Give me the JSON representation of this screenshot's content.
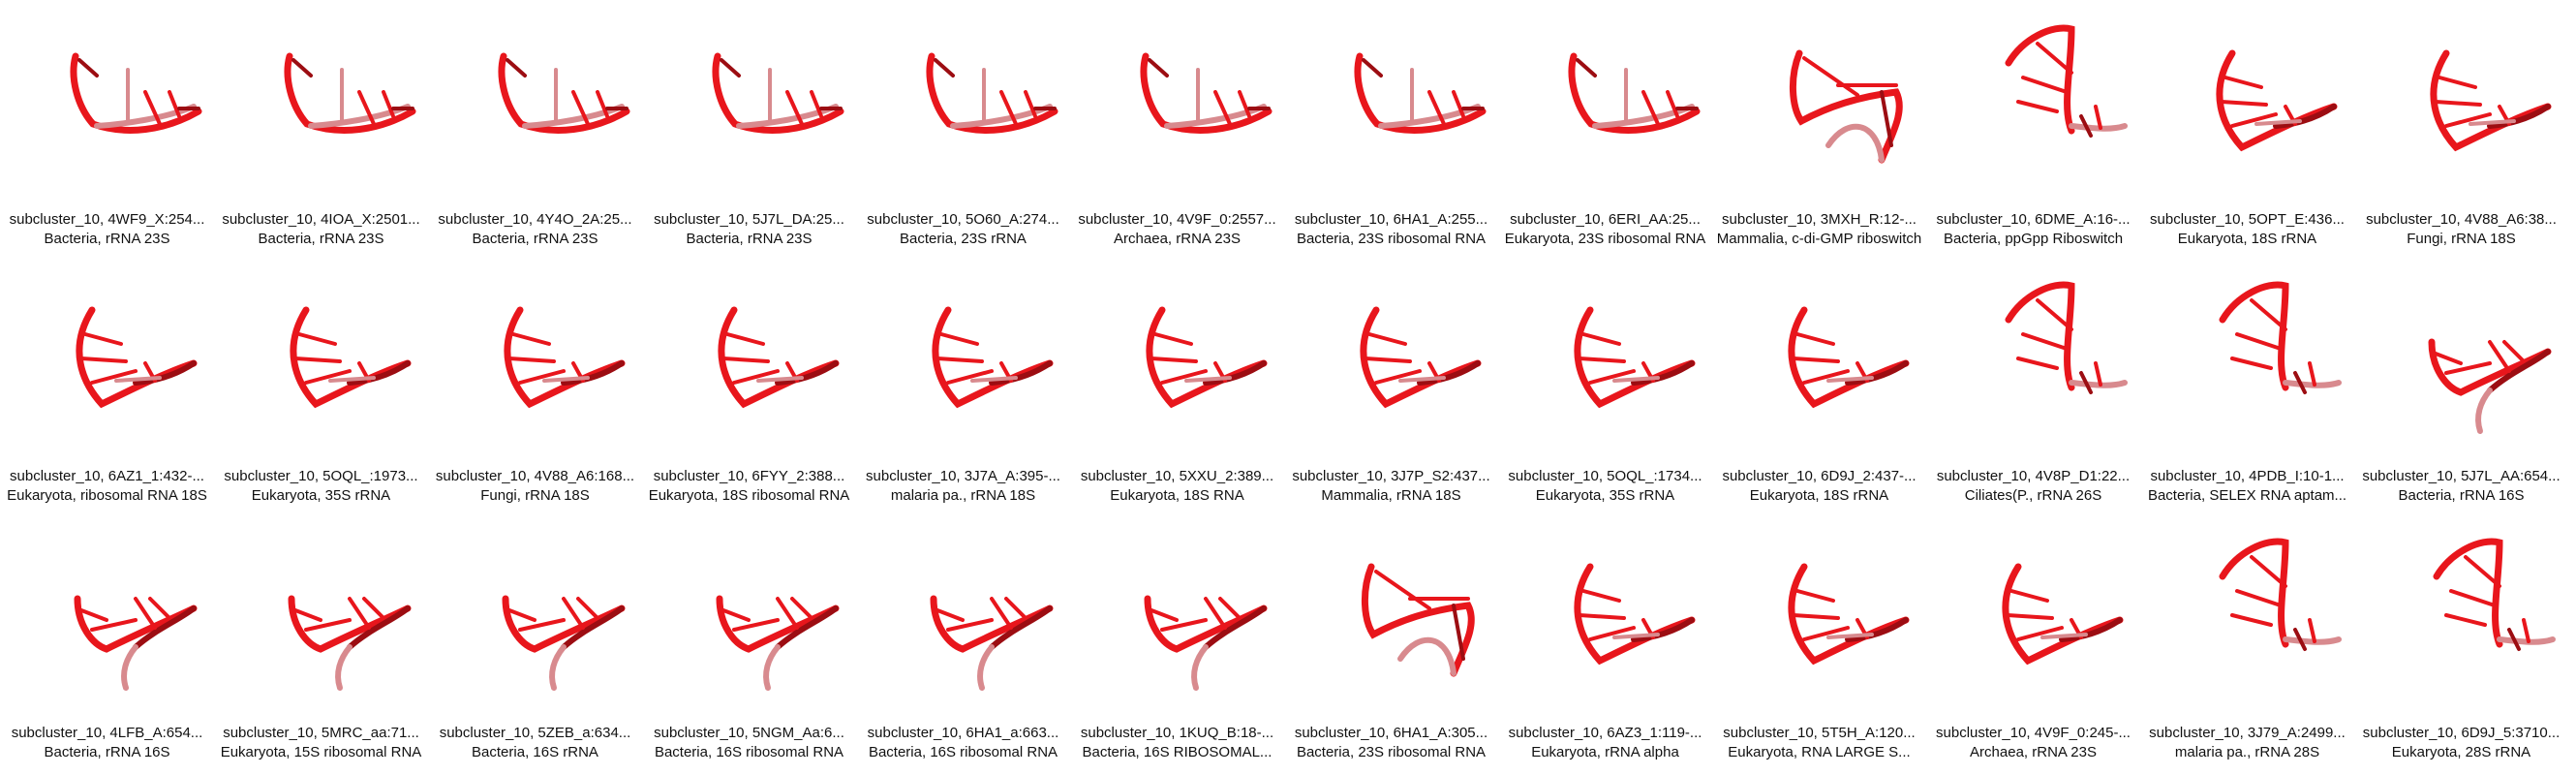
{
  "colors": {
    "strand": "#e8161c",
    "strand_dark": "#9c0d12",
    "strand_light": "#d88a8e"
  },
  "tiles": [
    {
      "label": "subcluster_10, 4WF9_X:254...",
      "desc": "Bacteria, rRNA 23S",
      "shape": "a"
    },
    {
      "label": "subcluster_10, 4IOA_X:2501...",
      "desc": "Bacteria, rRNA 23S",
      "shape": "a"
    },
    {
      "label": "subcluster_10, 4Y4O_2A:25...",
      "desc": "Bacteria, rRNA 23S",
      "shape": "a"
    },
    {
      "label": "subcluster_10, 5J7L_DA:25...",
      "desc": "Bacteria, rRNA 23S",
      "shape": "a"
    },
    {
      "label": "subcluster_10, 5O60_A:274...",
      "desc": "Bacteria, 23S rRNA",
      "shape": "a"
    },
    {
      "label": "subcluster_10, 4V9F_0:2557...",
      "desc": "Archaea, rRNA 23S",
      "shape": "a"
    },
    {
      "label": "subcluster_10, 6HA1_A:255...",
      "desc": "Bacteria, 23S ribosomal RNA",
      "shape": "a"
    },
    {
      "label": "subcluster_10, 6ERI_AA:25...",
      "desc": "Eukaryota, 23S ribosomal RNA",
      "shape": "a"
    },
    {
      "label": "subcluster_10, 3MXH_R:12-...",
      "desc": "Mammalia, c-di-GMP riboswitch",
      "shape": "c"
    },
    {
      "label": "subcluster_10, 6DME_A:16-...",
      "desc": "Bacteria, ppGpp Riboswitch",
      "shape": "d"
    },
    {
      "label": "subcluster_10, 5OPT_E:436...",
      "desc": "Eukaryota, 18S rRNA",
      "shape": "b"
    },
    {
      "label": "subcluster_10, 4V88_A6:38...",
      "desc": "Fungi, rRNA 18S",
      "shape": "b"
    },
    {
      "label": "subcluster_10, 6AZ1_1:432-...",
      "desc": "Eukaryota, ribosomal RNA 18S",
      "shape": "b"
    },
    {
      "label": "subcluster_10, 5OQL_:1973...",
      "desc": "Eukaryota, 35S rRNA",
      "shape": "b"
    },
    {
      "label": "subcluster_10, 4V88_A6:168...",
      "desc": "Fungi, rRNA 18S",
      "shape": "b"
    },
    {
      "label": "subcluster_10, 6FYY_2:388...",
      "desc": "Eukaryota, 18S ribosomal RNA",
      "shape": "b"
    },
    {
      "label": "subcluster_10, 3J7A_A:395-...",
      "desc": "malaria pa., rRNA 18S",
      "shape": "b"
    },
    {
      "label": "subcluster_10, 5XXU_2:389...",
      "desc": "Eukaryota, 18S RNA",
      "shape": "b"
    },
    {
      "label": "subcluster_10, 3J7P_S2:437...",
      "desc": "Mammalia, rRNA 18S",
      "shape": "b"
    },
    {
      "label": "subcluster_10, 5OQL_:1734...",
      "desc": "Eukaryota, 35S rRNA",
      "shape": "b"
    },
    {
      "label": "subcluster_10, 6D9J_2:437-...",
      "desc": "Eukaryota, 18S rRNA",
      "shape": "b"
    },
    {
      "label": "subcluster_10, 4V8P_D1:22...",
      "desc": "Ciliates(P., rRNA 26S",
      "shape": "d"
    },
    {
      "label": "subcluster_10, 4PDB_I:10-1...",
      "desc": "Bacteria, SELEX RNA aptam...",
      "shape": "d"
    },
    {
      "label": "subcluster_10, 5J7L_AA:654...",
      "desc": "Bacteria, rRNA 16S",
      "shape": "e"
    },
    {
      "label": "subcluster_10, 4LFB_A:654...",
      "desc": "Bacteria, rRNA 16S",
      "shape": "e"
    },
    {
      "label": "subcluster_10, 5MRC_aa:71...",
      "desc": "Eukaryota, 15S ribosomal RNA",
      "shape": "e"
    },
    {
      "label": "subcluster_10, 5ZEB_a:634...",
      "desc": "Bacteria, 16S rRNA",
      "shape": "e"
    },
    {
      "label": "subcluster_10, 5NGM_Aa:6...",
      "desc": "Bacteria, 16S ribosomal RNA",
      "shape": "e"
    },
    {
      "label": "subcluster_10, 6HA1_a:663...",
      "desc": "Bacteria, 16S ribosomal RNA",
      "shape": "e"
    },
    {
      "label": "subcluster_10, 1KUQ_B:18-...",
      "desc": "Bacteria, 16S RIBOSOMAL...",
      "shape": "e"
    },
    {
      "label": "subcluster_10, 6HA1_A:305...",
      "desc": "Bacteria, 23S ribosomal RNA",
      "shape": "c"
    },
    {
      "label": "subcluster_10, 6AZ3_1:119-...",
      "desc": "Eukaryota, rRNA alpha",
      "shape": "b"
    },
    {
      "label": "subcluster_10, 5T5H_A:120...",
      "desc": "Eukaryota, RNA LARGE S...",
      "shape": "b"
    },
    {
      "label": "subcluster_10, 4V9F_0:245-...",
      "desc": "Archaea, rRNA 23S",
      "shape": "b"
    },
    {
      "label": "subcluster_10, 3J79_A:2499...",
      "desc": "malaria pa., rRNA 28S",
      "shape": "d"
    },
    {
      "label": "subcluster_10, 6D9J_5:3710...",
      "desc": "Eukaryota, 28S rRNA",
      "shape": "d"
    }
  ]
}
